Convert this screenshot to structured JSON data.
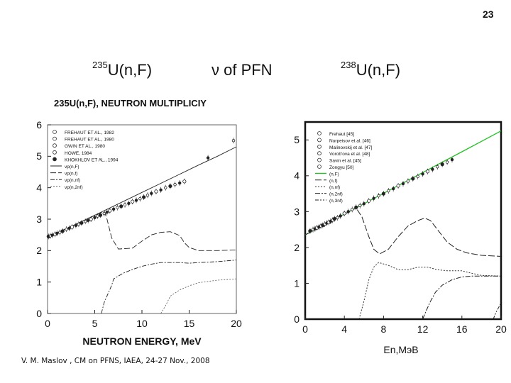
{
  "slide": {
    "page_number": "23",
    "title_left": {
      "sup": "235",
      "text": "U(n,F)"
    },
    "title_middle": "ν of PFN",
    "title_right": {
      "sup": "238",
      "text": "U(n,F)"
    },
    "footer": "V. M. Maslov ,  CM on PFNS, IAEA, 24-27 Nov., 2008"
  },
  "chart_data": [
    {
      "type": "line",
      "title": "235U(n,F), NEUTRON MULTIPLICIY",
      "xlabel": "NEUTRON ENERGY, MeV",
      "ylabel": "",
      "xlim": [
        0,
        20
      ],
      "ylim": [
        0,
        6
      ],
      "xticks": [
        "0",
        "5",
        "10",
        "15",
        "20"
      ],
      "yticks": [
        "0",
        "1",
        "2",
        "3",
        "4",
        "5",
        "6"
      ],
      "grid": false,
      "legend_position": "top-left",
      "legend": [
        "FREHAUT ET AL., 1982",
        "FREHAUT ET AL., 1980",
        "GWIN ET AL., 1980",
        "HOWE, 1984",
        "KHOKHLOV ET AL., 1994",
        "νp(n,F)",
        "νp(n,f)",
        "νp(n,nf)",
        "νp(n,2nf)"
      ],
      "series": [
        {
          "name": "νp(n,F)",
          "x": [
            0,
            2,
            4,
            6,
            8,
            10,
            12,
            14,
            16,
            18,
            20
          ],
          "y": [
            2.42,
            2.7,
            2.98,
            3.27,
            3.56,
            3.85,
            4.14,
            4.43,
            4.72,
            5.0,
            5.3
          ]
        },
        {
          "name": "νp(n,f)",
          "x": [
            0,
            2,
            4,
            5.5,
            6,
            6.3,
            6.8,
            7.5,
            9,
            10,
            11,
            12,
            13,
            14,
            14.5,
            15,
            16,
            18,
            20
          ],
          "y": [
            2.42,
            2.7,
            2.98,
            3.19,
            3.26,
            3.0,
            2.4,
            2.05,
            2.08,
            2.3,
            2.5,
            2.58,
            2.6,
            2.48,
            2.25,
            2.1,
            2.0,
            2.0,
            2.02
          ]
        },
        {
          "name": "νp(n,nf)",
          "x": [
            5.7,
            6,
            6.8,
            7,
            8,
            9,
            10,
            11,
            12,
            14,
            15,
            16,
            18,
            20
          ],
          "y": [
            0,
            0.35,
            0.9,
            1.1,
            1.28,
            1.4,
            1.5,
            1.57,
            1.62,
            1.62,
            1.6,
            1.62,
            1.65,
            1.7
          ]
        },
        {
          "name": "νp(n,2nf)",
          "x": [
            12,
            12.5,
            13,
            14,
            15,
            16,
            17,
            18,
            20
          ],
          "y": [
            0,
            0.25,
            0.55,
            0.75,
            0.88,
            0.98,
            1.02,
            1.06,
            1.1
          ]
        },
        {
          "name": "data",
          "x": [
            0.1,
            0.3,
            0.5,
            0.8,
            1.0,
            1.3,
            1.6,
            2.0,
            2.3,
            2.6,
            3.0,
            3.3,
            3.6,
            4.0,
            4.3,
            4.6,
            5.0,
            5.3,
            5.6,
            6.0,
            6.3,
            6.6,
            7.0,
            7.4,
            7.8,
            8.2,
            8.6,
            9.0,
            9.4,
            9.8,
            10.2,
            10.6,
            11.0,
            11.5,
            12.0,
            12.5,
            13.0,
            13.5,
            14.0,
            14.5,
            17.0,
            19.7
          ],
          "y": [
            2.45,
            2.47,
            2.49,
            2.52,
            2.55,
            2.58,
            2.62,
            2.68,
            2.71,
            2.75,
            2.8,
            2.84,
            2.88,
            2.93,
            2.96,
            3.0,
            3.05,
            3.1,
            3.13,
            3.18,
            3.22,
            3.27,
            3.32,
            3.37,
            3.41,
            3.46,
            3.5,
            3.56,
            3.6,
            3.65,
            3.7,
            3.76,
            3.82,
            3.88,
            3.93,
            4.0,
            4.05,
            4.1,
            4.15,
            4.2,
            4.95,
            5.5
          ]
        }
      ]
    },
    {
      "type": "line",
      "title": "",
      "xlabel": "En,MэВ",
      "ylabel": "",
      "xlim": [
        0,
        20
      ],
      "ylim": [
        0,
        5.5
      ],
      "xticks": [
        "0",
        "4",
        "8",
        "12",
        "16",
        "20"
      ],
      "yticks": [
        "0",
        "1",
        "2",
        "3",
        "4",
        "5"
      ],
      "grid": false,
      "legend_position": "top-left",
      "legend": [
        "Frehaut [45]",
        "Nurpeisov et al. [46]",
        "Malinovskij et al. [47]",
        "Vorob'ova et al. [48]",
        "Savin et al. [45]",
        "Zongyu [50]",
        "(n,F)",
        "(n,f)",
        "(n,nf)",
        "(n,2nf)",
        "(n,3nf)"
      ],
      "series": [
        {
          "name": "(n,F)",
          "x": [
            0,
            2,
            4,
            6,
            8,
            10,
            12,
            14,
            16,
            18,
            20
          ],
          "y": [
            2.35,
            2.64,
            2.93,
            3.22,
            3.51,
            3.8,
            4.09,
            4.38,
            4.67,
            4.96,
            5.25
          ]
        },
        {
          "name": "(n,f)",
          "x": [
            0,
            2,
            4,
            5.2,
            5.8,
            6.5,
            7.0,
            7.6,
            8.5,
            9.5,
            10.5,
            11.5,
            12.2,
            12.8,
            13.5,
            14.5,
            15.5,
            16.5,
            18,
            20
          ],
          "y": [
            2.35,
            2.64,
            2.93,
            3.1,
            2.85,
            2.3,
            1.95,
            1.82,
            1.95,
            2.3,
            2.6,
            2.75,
            2.82,
            2.75,
            2.5,
            2.15,
            1.95,
            1.85,
            1.78,
            1.75
          ]
        },
        {
          "name": "(n,nf)",
          "x": [
            5.5,
            6.0,
            6.5,
            7.0,
            7.5,
            8.5,
            9.5,
            10.5,
            11.5,
            12.5,
            13.5,
            14.5,
            16,
            17,
            18,
            20
          ],
          "y": [
            0,
            0.5,
            1.1,
            1.45,
            1.58,
            1.5,
            1.38,
            1.38,
            1.45,
            1.45,
            1.38,
            1.35,
            1.35,
            1.28,
            1.22,
            1.2
          ]
        },
        {
          "name": "(n,2nf)",
          "x": [
            12,
            12.3,
            12.8,
            13.3,
            14,
            15,
            16,
            17,
            18,
            19,
            20
          ],
          "y": [
            0,
            0.2,
            0.5,
            0.75,
            0.95,
            1.1,
            1.18,
            1.2,
            1.2,
            1.2,
            1.2
          ]
        },
        {
          "name": "(n,3nf)",
          "x": [
            19.2,
            19.5,
            20
          ],
          "y": [
            0,
            0.2,
            0.45
          ]
        },
        {
          "name": "data",
          "x": [
            0.5,
            0.8,
            1.0,
            1.2,
            1.4,
            1.6,
            1.8,
            2.0,
            2.2,
            2.4,
            2.6,
            2.8,
            3.0,
            3.3,
            3.6,
            4.0,
            4.4,
            4.8,
            5.2,
            5.6,
            6.0,
            6.5,
            7.0,
            7.5,
            8.0,
            8.5,
            9.0,
            9.5,
            10.0,
            10.5,
            11.0,
            11.5,
            12.0,
            12.5,
            13.0,
            13.5,
            14.0,
            14.5,
            15.0
          ],
          "y": [
            2.46,
            2.5,
            2.52,
            2.55,
            2.57,
            2.6,
            2.62,
            2.65,
            2.68,
            2.7,
            2.73,
            2.76,
            2.8,
            2.83,
            2.88,
            2.95,
            3.0,
            3.06,
            3.12,
            3.17,
            3.22,
            3.3,
            3.37,
            3.44,
            3.5,
            3.58,
            3.64,
            3.72,
            3.78,
            3.85,
            3.92,
            3.98,
            4.05,
            4.12,
            4.18,
            4.25,
            4.32,
            4.38,
            4.45
          ]
        }
      ]
    }
  ]
}
